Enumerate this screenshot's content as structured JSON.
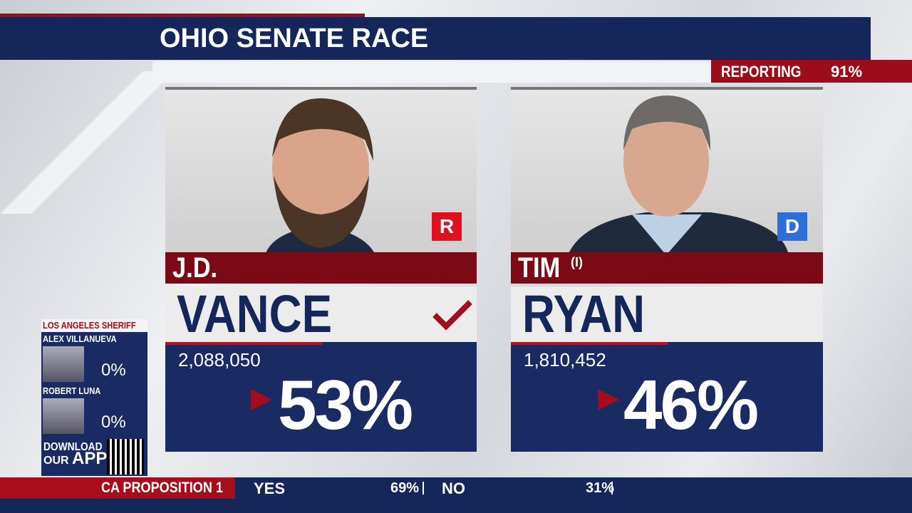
{
  "header": {
    "title": "OHIO SENATE RACE",
    "reporting_label": "REPORTING",
    "reporting_value": "91%"
  },
  "candidates": [
    {
      "first_name": "J.D.",
      "last_name": "VANCE",
      "party": "R",
      "votes": "2,088,050",
      "percent": "53%"
    },
    {
      "first_name": "TIM",
      "incumbent_marker": "(I)",
      "last_name": "RYAN",
      "party": "D",
      "votes": "1,810,452",
      "percent": "46%"
    }
  ],
  "sidebar": {
    "race": "LOS ANGELES SHERIFF",
    "candidates": [
      {
        "name": "ALEX VILLANUEVA",
        "percent": "0%"
      },
      {
        "name": "ROBERT LUNA",
        "percent": "0%"
      }
    ],
    "app_promo": [
      "DOWNLOAD",
      "OUR",
      "APP"
    ]
  },
  "ticker": {
    "label": "CA PROPOSITION 1",
    "options": [
      {
        "name": "YES",
        "percent": "69%"
      },
      {
        "name": "NO",
        "percent": "31%"
      }
    ]
  }
}
